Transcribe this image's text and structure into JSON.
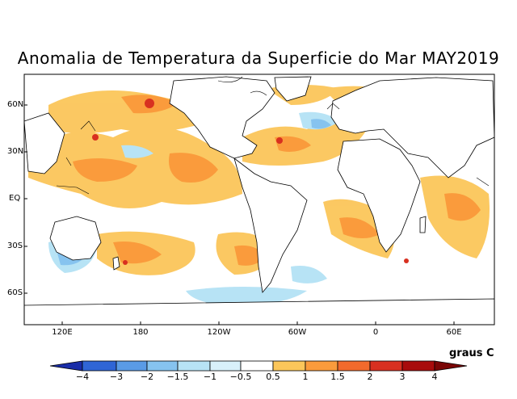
{
  "title": "Anomalia de Temperatura da Superficie do Mar MAY2019",
  "lat_labels": [
    "60N",
    "30N",
    "EQ",
    "30S",
    "60S"
  ],
  "lon_labels": [
    "120E",
    "180",
    "120W",
    "60W",
    "0",
    "60E"
  ],
  "units": "graus C",
  "colorbar": {
    "labels": [
      "−4",
      "−3",
      "−2",
      "−1.5",
      "−1",
      "−0.5",
      "0.5",
      "1",
      "1.5",
      "2",
      "3",
      "4"
    ],
    "colors": [
      "#1a2da8",
      "#2f65d6",
      "#5a9be6",
      "#86c3ef",
      "#b7e3f5",
      "#ffffff",
      "#fbc65a",
      "#fa9b3c",
      "#f26a2c",
      "#d83020",
      "#a80c0c"
    ]
  }
}
